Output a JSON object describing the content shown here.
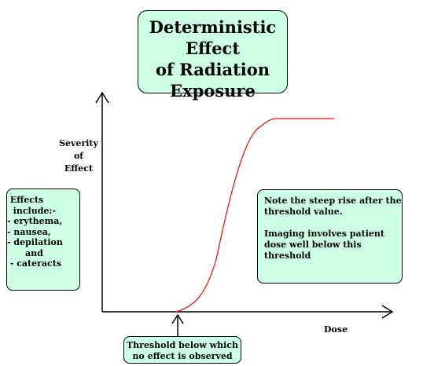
{
  "title": {
    "lines": [
      "Deterministic Effect",
      "of Radiation",
      "Exposure"
    ]
  },
  "y_axis_label": {
    "lines": [
      "Severity",
      "of",
      "Effect"
    ]
  },
  "x_axis_label": "Dose",
  "effects_box": {
    "lines": [
      " Effects",
      "  include:-",
      "- erythema,",
      "- nausea,",
      "- depilation",
      "      and",
      " - cateracts"
    ]
  },
  "note_box": {
    "paragraphs": [
      "Note the steep rise after the threshold value.",
      "Imaging involves patient dose well below this threshold"
    ]
  },
  "threshold_box": {
    "lines": [
      "Threshold below which",
      "no effect is observed"
    ]
  },
  "colors": {
    "box_fill": "#ccffe6",
    "curve": "#ff0000",
    "axis": "#000000"
  }
}
